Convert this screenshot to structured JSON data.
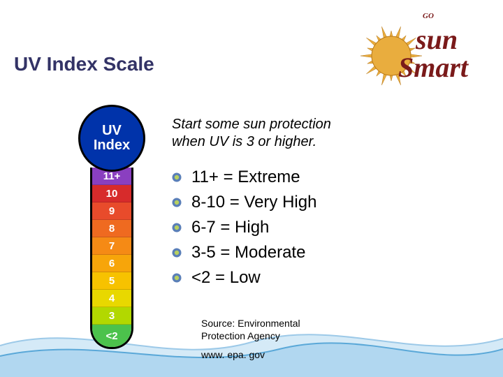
{
  "title": "UV Index Scale",
  "logo": {
    "go": "GO",
    "top": "sun",
    "bottom": "Smart",
    "sun_color": "#e9ad3e",
    "text_color": "#7a1a1a"
  },
  "subtitle_line1": "Start some sun protection",
  "subtitle_line2": "when UV is 3 or higher.",
  "bullets": [
    "11+ = Extreme",
    "8-10 = Very High",
    "6-7 = High",
    "3-5 = Moderate",
    "<2 = Low"
  ],
  "bullet_icon": {
    "outer": "#5a7fb8",
    "inner": "#b8d060"
  },
  "source_line1": "Source: Environmental",
  "source_line2": "Protection Agency",
  "url": "www. epa. gov",
  "thermometer": {
    "bulb_label_1": "UV",
    "bulb_label_2": "Index",
    "bulb_color": "#0033aa",
    "segments": [
      {
        "label": "11+",
        "color": "#8a3fc0"
      },
      {
        "label": "10",
        "color": "#d72b2b"
      },
      {
        "label": "9",
        "color": "#e84b2b"
      },
      {
        "label": "8",
        "color": "#ef6a20"
      },
      {
        "label": "7",
        "color": "#f58a15"
      },
      {
        "label": "6",
        "color": "#f7a50a"
      },
      {
        "label": "5",
        "color": "#f7c200"
      },
      {
        "label": "4",
        "color": "#e8d800"
      },
      {
        "label": "3",
        "color": "#b2d800"
      },
      {
        "label": "<2",
        "color": "#4cc24c"
      }
    ]
  },
  "wave": {
    "stroke1": "#9cc9e8",
    "fill1": "#cbe5f5",
    "stroke2": "#5aa8d8",
    "fill2": "#aad4ee"
  }
}
